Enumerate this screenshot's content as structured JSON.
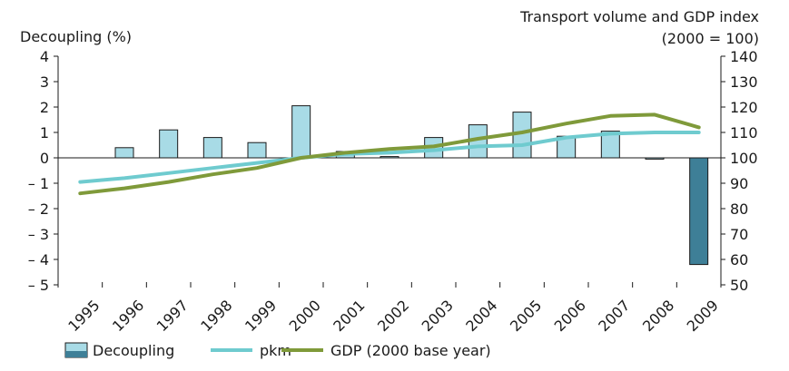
{
  "chart_data": {
    "type": "bar",
    "left_axis_title": "Decoupling (%)",
    "right_axis_title_line1": "Transport volume and GDP index",
    "right_axis_title_line2": "(2000 = 100)",
    "categories": [
      "1995",
      "1996",
      "1997",
      "1998",
      "1999",
      "2000",
      "2001",
      "2002",
      "2003",
      "2004",
      "2005",
      "2006",
      "2007",
      "2008",
      "2009"
    ],
    "left_ylim": [
      -5,
      4
    ],
    "left_ticks": [
      4,
      3,
      2,
      1,
      0,
      -1,
      -2,
      -3,
      -4,
      -5
    ],
    "left_tick_labels": [
      "4",
      "3",
      "2",
      "1",
      "0",
      "– 1",
      "– 2",
      "– 3",
      "– 4",
      "– 5"
    ],
    "right_ylim": [
      50,
      140
    ],
    "right_ticks": [
      140,
      130,
      120,
      110,
      100,
      90,
      80,
      70,
      60,
      50
    ],
    "right_tick_labels": [
      "140",
      "130",
      "120",
      "110",
      "100",
      "90",
      "80",
      "70",
      "60",
      "50"
    ],
    "series": [
      {
        "name": "Decoupling",
        "kind": "bar",
        "axis": "left",
        "values": [
          0,
          0.4,
          1.1,
          0.8,
          0.6,
          2.05,
          0.25,
          0.05,
          0.8,
          1.3,
          1.8,
          0.85,
          1.05,
          -0.05,
          -4.2
        ],
        "color_normal": "#a8dbe6",
        "color_negative": "#3e7f97",
        "stroke": "#1a1a1a"
      },
      {
        "name": "pkm",
        "kind": "line",
        "axis": "right",
        "values": [
          90.5,
          92,
          94,
          96,
          98,
          100,
          101.5,
          102,
          103,
          104.5,
          105,
          108,
          109.5,
          110,
          110
        ],
        "color": "#6fcbcf"
      },
      {
        "name": "GDP (2000 base year)",
        "kind": "line",
        "axis": "right",
        "values": [
          86,
          88,
          90.5,
          93.5,
          96,
          100,
          102,
          103.5,
          104.5,
          107.5,
          110,
          113.5,
          116.5,
          117,
          112
        ],
        "color": "#7f9a3a"
      }
    ],
    "grid": false,
    "legend_position": "bottom-left"
  }
}
